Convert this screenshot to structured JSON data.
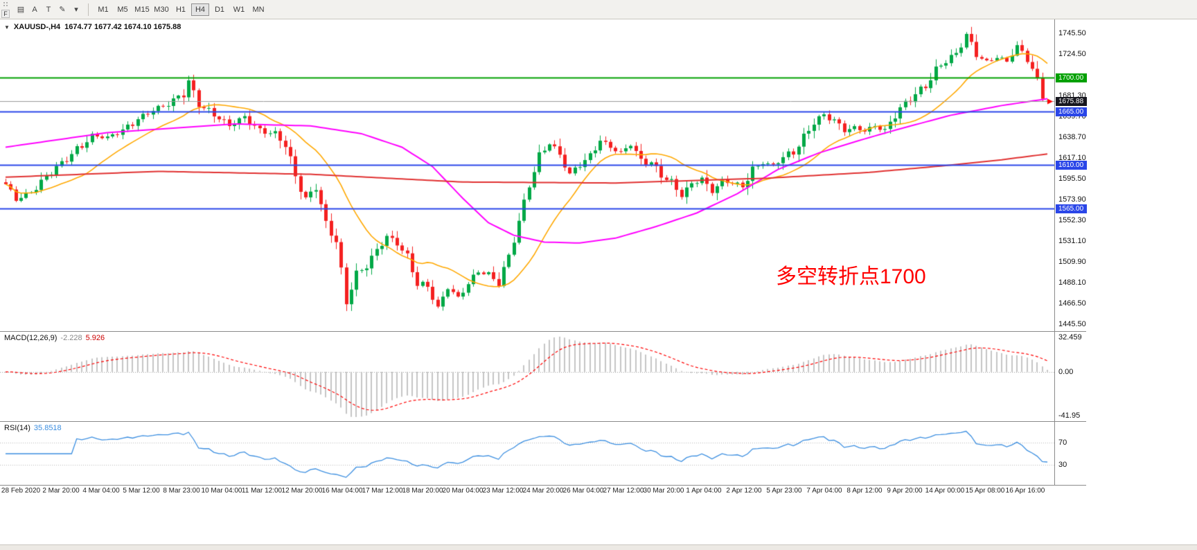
{
  "toolbar": {
    "f_button": "F",
    "left_buttons": [
      {
        "name": "charts-grid-icon",
        "glyph": "▤"
      },
      {
        "name": "annotate-a-icon",
        "glyph": "A"
      },
      {
        "name": "text-tool-icon",
        "glyph": "T"
      },
      {
        "name": "draw-pen-icon",
        "glyph": "✎"
      },
      {
        "name": "caret-down-icon",
        "glyph": "▾"
      }
    ],
    "timeframes": [
      "M1",
      "M5",
      "M15",
      "M30",
      "H1",
      "H4",
      "D1",
      "W1",
      "MN"
    ],
    "active_timeframe": "H4"
  },
  "chart": {
    "collapse_glyph": "▼",
    "title_symbol": "XAUUSD-,H4",
    "title_ohlc": "1674.77 1677.42 1674.10 1675.88",
    "annotation": {
      "text": "多空转折点1700",
      "color": "#ff0000"
    },
    "price_axis_ticks": [
      "1745.50",
      "1724.50",
      "1681.30",
      "1659.70",
      "1638.70",
      "1617.10",
      "1595.50",
      "1573.90",
      "1552.30",
      "1531.10",
      "1509.90",
      "1488.10",
      "1466.50",
      "1445.50"
    ],
    "badges": [
      {
        "text": "1700.00",
        "price": 1700.0,
        "bg": "#00a000"
      },
      {
        "text": "1665.00",
        "price": 1665.0,
        "bg": "#2a46e8"
      },
      {
        "text": "1610.00",
        "price": 1610.0,
        "bg": "#2a46e8"
      },
      {
        "text": "1565.00",
        "price": 1565.0,
        "bg": "#2a46e8"
      },
      {
        "text": "1675.88",
        "price": 1675.88,
        "bg": "#17171f"
      }
    ]
  },
  "macd": {
    "name": "MACD(12,26,9)",
    "value_main": "-2.228",
    "value_signal": "5.926",
    "axis_max": "32.459",
    "axis_zero": "0.00",
    "axis_min": "-41.95"
  },
  "rsi": {
    "name": "RSI(14)",
    "value": "35.8518",
    "axis_high": "70",
    "axis_low": "30"
  },
  "time_axis": [
    "28 Feb 2020",
    "2 Mar 20:00",
    "4 Mar 04:00",
    "5 Mar 12:00",
    "8 Mar 23:00",
    "10 Mar 04:00",
    "11 Mar 12:00",
    "12 Mar 20:00",
    "16 Mar 04:00",
    "17 Mar 12:00",
    "18 Mar 20:00",
    "20 Mar 04:00",
    "23 Mar 12:00",
    "24 Mar 20:00",
    "26 Mar 04:00",
    "27 Mar 12:00",
    "30 Mar 20:00",
    "1 Apr 04:00",
    "2 Apr 12:00",
    "5 Apr 23:00",
    "7 Apr 04:00",
    "8 Apr 12:00",
    "9 Apr 20:00",
    "14 Apr 00:00",
    "15 Apr 08:00",
    "16 Apr 16:00"
  ],
  "chart_data": {
    "type": "candlestick",
    "symbol": "XAUUSD-",
    "period": "H4",
    "bar_count": 206,
    "ylim": [
      1438,
      1760
    ],
    "last_bar": {
      "open": 1674.77,
      "high": 1677.42,
      "low": 1674.1,
      "close": 1675.88
    },
    "close_anchors": [
      [
        0,
        1588
      ],
      [
        2,
        1574
      ],
      [
        4,
        1580
      ],
      [
        6,
        1588
      ],
      [
        8,
        1597
      ],
      [
        11,
        1609
      ],
      [
        14,
        1627
      ],
      [
        17,
        1641
      ],
      [
        20,
        1637
      ],
      [
        23,
        1644
      ],
      [
        26,
        1659
      ],
      [
        29,
        1667
      ],
      [
        32,
        1671
      ],
      [
        35,
        1682
      ],
      [
        36,
        1697
      ],
      [
        38,
        1676
      ],
      [
        41,
        1661
      ],
      [
        44,
        1649
      ],
      [
        47,
        1660
      ],
      [
        50,
        1647
      ],
      [
        53,
        1640
      ],
      [
        55,
        1628
      ],
      [
        57,
        1598
      ],
      [
        59,
        1576
      ],
      [
        61,
        1590
      ],
      [
        63,
        1548
      ],
      [
        65,
        1528
      ],
      [
        67,
        1466
      ],
      [
        69,
        1498
      ],
      [
        71,
        1509
      ],
      [
        73,
        1522
      ],
      [
        75,
        1535
      ],
      [
        77,
        1527
      ],
      [
        79,
        1514
      ],
      [
        81,
        1490
      ],
      [
        83,
        1486
      ],
      [
        85,
        1462
      ],
      [
        87,
        1482
      ],
      [
        89,
        1471
      ],
      [
        91,
        1489
      ],
      [
        93,
        1501
      ],
      [
        95,
        1497
      ],
      [
        97,
        1486
      ],
      [
        99,
        1512
      ],
      [
        101,
        1551
      ],
      [
        103,
        1592
      ],
      [
        105,
        1621
      ],
      [
        107,
        1632
      ],
      [
        109,
        1617
      ],
      [
        111,
        1599
      ],
      [
        113,
        1612
      ],
      [
        115,
        1621
      ],
      [
        117,
        1636
      ],
      [
        119,
        1627
      ],
      [
        121,
        1621
      ],
      [
        123,
        1631
      ],
      [
        125,
        1616
      ],
      [
        127,
        1614
      ],
      [
        129,
        1599
      ],
      [
        131,
        1589
      ],
      [
        133,
        1577
      ],
      [
        135,
        1591
      ],
      [
        137,
        1597
      ],
      [
        139,
        1583
      ],
      [
        141,
        1592
      ],
      [
        143,
        1590
      ],
      [
        145,
        1587
      ],
      [
        147,
        1607
      ],
      [
        149,
        1613
      ],
      [
        151,
        1609
      ],
      [
        153,
        1616
      ],
      [
        155,
        1621
      ],
      [
        157,
        1639
      ],
      [
        159,
        1657
      ],
      [
        161,
        1662
      ],
      [
        163,
        1654
      ],
      [
        165,
        1644
      ],
      [
        167,
        1648
      ],
      [
        169,
        1646
      ],
      [
        171,
        1651
      ],
      [
        173,
        1645
      ],
      [
        175,
        1659
      ],
      [
        177,
        1671
      ],
      [
        179,
        1684
      ],
      [
        181,
        1694
      ],
      [
        183,
        1709
      ],
      [
        185,
        1716
      ],
      [
        187,
        1721
      ],
      [
        189,
        1744
      ],
      [
        191,
        1727
      ],
      [
        193,
        1717
      ],
      [
        195,
        1721
      ],
      [
        197,
        1715
      ],
      [
        199,
        1731
      ],
      [
        201,
        1721
      ],
      [
        203,
        1699
      ],
      [
        204,
        1684
      ],
      [
        205,
        1675.88
      ]
    ],
    "ma_fast_period": 16,
    "ma_mid_anchors": [
      [
        0,
        1628
      ],
      [
        20,
        1643
      ],
      [
        45,
        1652
      ],
      [
        60,
        1650
      ],
      [
        70,
        1642
      ],
      [
        78,
        1628
      ],
      [
        84,
        1608
      ],
      [
        90,
        1575
      ],
      [
        95,
        1550
      ],
      [
        100,
        1537
      ],
      [
        106,
        1530
      ],
      [
        113,
        1529
      ],
      [
        120,
        1534
      ],
      [
        128,
        1546
      ],
      [
        136,
        1560
      ],
      [
        144,
        1580
      ],
      [
        152,
        1605
      ],
      [
        160,
        1622
      ],
      [
        168,
        1635
      ],
      [
        176,
        1647
      ],
      [
        186,
        1661
      ],
      [
        196,
        1671
      ],
      [
        205,
        1678
      ]
    ],
    "ma_slow_anchors": [
      [
        0,
        1597
      ],
      [
        30,
        1603
      ],
      [
        60,
        1600
      ],
      [
        90,
        1592
      ],
      [
        120,
        1591
      ],
      [
        150,
        1596
      ],
      [
        170,
        1602
      ],
      [
        185,
        1609
      ],
      [
        196,
        1615
      ],
      [
        205,
        1621
      ]
    ],
    "hlines": [
      {
        "price": 1700,
        "color": "#00a000",
        "width": 2
      },
      {
        "price": 1665,
        "color": "#2a46e8",
        "width": 2
      },
      {
        "price": 1610,
        "color": "#2a46e8",
        "width": 2
      },
      {
        "price": 1565,
        "color": "#2a46e8",
        "width": 2
      }
    ],
    "current_price_line": {
      "price": 1675.88,
      "color": "#9a9a9a",
      "width": 1
    },
    "macd_params": {
      "fast": 12,
      "slow": 26,
      "signal": 9
    },
    "rsi_period": 14,
    "rsi_levels": [
      70,
      30
    ],
    "colors": {
      "up": "#00a846",
      "down": "#f42020",
      "ma_fast": "#ffa800",
      "ma_mid": "#ff00ff",
      "ma_slow": "#e03030",
      "macd_hist": "#c4c4c4",
      "macd_signal": "#ff0000",
      "rsi_line": "#3b8ee0",
      "level_dotted": "#b8b8b8"
    }
  }
}
